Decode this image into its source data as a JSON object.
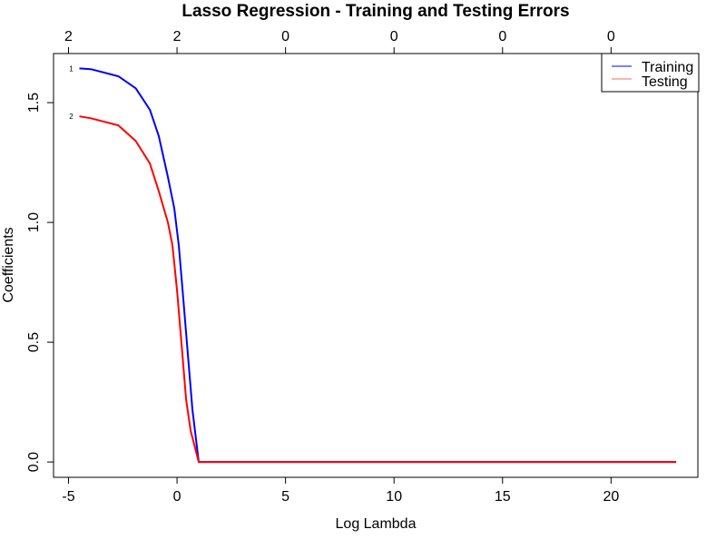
{
  "chart_data": {
    "type": "line",
    "title": "Lasso Regression - Training and Testing Errors",
    "xlabel": "Log Lambda",
    "ylabel": "Coefficients",
    "xlim": [
      -5.69,
      24.0
    ],
    "ylim": [
      -0.064,
      1.705
    ],
    "grid": false,
    "x_ticks": [
      -5,
      0,
      5,
      10,
      15,
      20
    ],
    "x_tick_labels": [
      "-5",
      "0",
      "5",
      "10",
      "15",
      "20"
    ],
    "y_ticks": [
      0,
      0.5,
      1,
      1.5
    ],
    "y_tick_labels": [
      "0.0",
      "0.5",
      "1.0",
      "1.5"
    ],
    "top_axis": {
      "ticks": [
        -5,
        0,
        5,
        10,
        15,
        20
      ],
      "labels": [
        "2",
        "2",
        "0",
        "0",
        "0",
        "0"
      ]
    },
    "legend": {
      "placement": "top-right",
      "entries": [
        "Training",
        "Testing"
      ]
    },
    "series": [
      {
        "name": "Training",
        "color": "#0000ff",
        "curve_label": "1",
        "x": [
          -4.5,
          -3.97,
          -2.7,
          -1.9,
          -1.25,
          -0.84,
          -0.42,
          -0.13,
          0.08,
          0.29,
          0.5,
          0.71,
          1.0,
          23
        ],
        "y": [
          1.643,
          1.64,
          1.61,
          1.56,
          1.47,
          1.36,
          1.19,
          1.06,
          0.905,
          0.68,
          0.45,
          0.22,
          0.0,
          0.0
        ]
      },
      {
        "name": "Testing",
        "color": "#ff0000",
        "curve_label": "2",
        "x": [
          -4.5,
          -3.97,
          -2.7,
          -1.9,
          -1.25,
          -0.84,
          -0.42,
          -0.21,
          0.0,
          0.21,
          0.42,
          0.63,
          1.0,
          23
        ],
        "y": [
          1.443,
          1.435,
          1.405,
          1.34,
          1.246,
          1.13,
          1.0,
          0.905,
          0.716,
          0.49,
          0.26,
          0.13,
          0.0,
          0.0
        ]
      }
    ]
  }
}
